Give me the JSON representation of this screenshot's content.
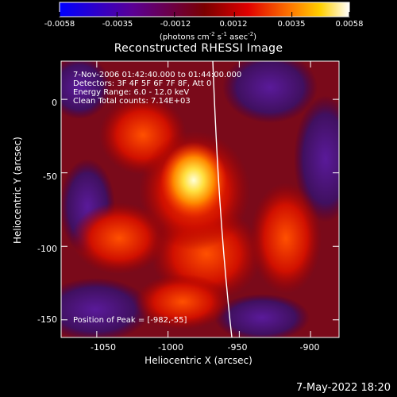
{
  "colorbar": {
    "ticks": [
      "-0.0058",
      "-0.0035",
      "-0.0012",
      "0.0012",
      "0.0035",
      "0.0058"
    ],
    "unit_prefix": "(photons cm",
    "unit_exp1": "-2",
    "unit_mid": " s",
    "unit_exp2": "-1",
    "unit_mid2": " asec",
    "unit_exp3": "-2",
    "unit_suffix": ")",
    "range": [
      -0.0058,
      0.0058
    ]
  },
  "chart_data": {
    "type": "heatmap",
    "title": "Reconstructed RHESSI Image",
    "xlabel": "Heliocentric X (arcsec)",
    "ylabel": "Heliocentric Y (arcsec)",
    "xlim": [
      -1075,
      -880
    ],
    "ylim": [
      -162,
      26
    ],
    "x_ticks": [
      "-1050",
      "-1000",
      "-950",
      "-900"
    ],
    "y_ticks": [
      "0",
      "-50",
      "-100",
      "-150"
    ],
    "x_tick_values": [
      -1050,
      -1000,
      -950,
      -900
    ],
    "y_tick_values": [
      0,
      -50,
      -100,
      -150
    ],
    "peak": [
      -982,
      -55
    ],
    "colormap": "red-temperature",
    "annotations": {
      "time": "7-Nov-2006 01:42:40.000 to 01:44:00.000",
      "detectors": "Detectors: 3F 4F 5F 6F 7F 8F, Att 0",
      "energy": "Energy Range: 6.0 - 12.0 keV",
      "clean": "Clean     Total counts: 7.14E+03",
      "peak_text": "Position of Peak = [-982,-55]"
    },
    "limb": true
  },
  "footer": "7-May-2022 18:20"
}
